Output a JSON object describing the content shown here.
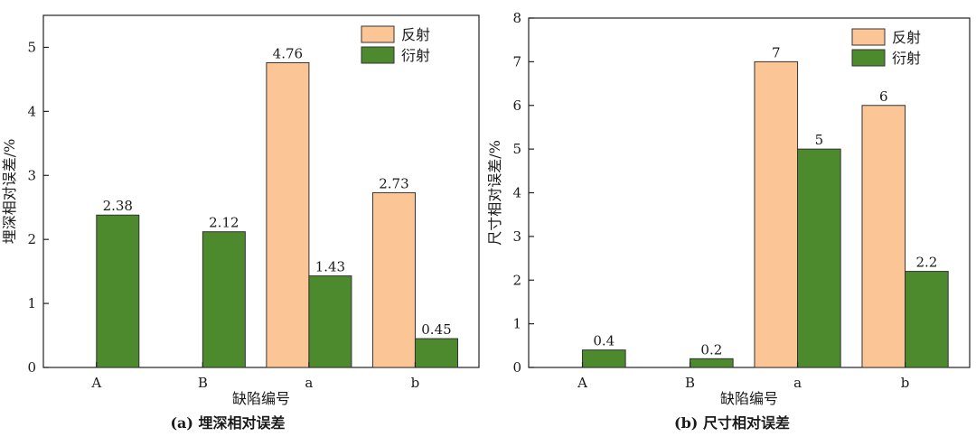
{
  "chart_data": [
    {
      "type": "bar",
      "caption": "(a) 埋深相对误差",
      "xlabel": "缺陷编号",
      "ylabel": "埋深相对误差/%",
      "categories": [
        "A",
        "B",
        "a",
        "b"
      ],
      "ylim": [
        0,
        5.5
      ],
      "yticks": [
        0,
        1,
        2,
        3,
        4,
        5
      ],
      "legend_position": "top-right",
      "series": [
        {
          "name": "反射",
          "color": "#fcc595",
          "values": [
            null,
            null,
            4.76,
            2.73
          ],
          "labels": [
            "",
            "",
            "4.76",
            "2.73"
          ]
        },
        {
          "name": "衍射",
          "color": "#4d8a2e",
          "values": [
            2.38,
            2.12,
            1.43,
            0.45
          ],
          "labels": [
            "2.38",
            "2.12",
            "1.43",
            "0.45"
          ]
        }
      ]
    },
    {
      "type": "bar",
      "caption": "(b) 尺寸相对误差",
      "xlabel": "缺陷编号",
      "ylabel": "尺寸相对误差/%",
      "categories": [
        "A",
        "B",
        "a",
        "b"
      ],
      "ylim": [
        0,
        8
      ],
      "yticks": [
        0,
        1,
        2,
        3,
        4,
        5,
        6,
        7,
        8
      ],
      "legend_position": "top-right",
      "series": [
        {
          "name": "反射",
          "color": "#fcc595",
          "values": [
            null,
            null,
            7,
            6
          ],
          "labels": [
            "",
            "",
            "7",
            "6"
          ]
        },
        {
          "name": "衍射",
          "color": "#4d8a2e",
          "values": [
            0.4,
            0.2,
            5,
            2.2
          ],
          "labels": [
            "0.4",
            "0.2",
            "5",
            "2.2"
          ]
        }
      ]
    }
  ]
}
